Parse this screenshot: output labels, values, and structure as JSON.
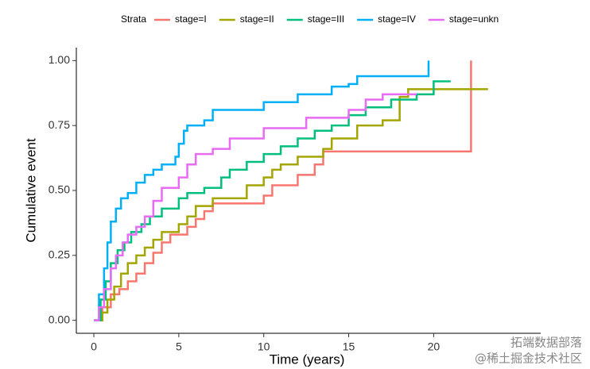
{
  "chart_data": {
    "type": "step",
    "x_label": "Time (years)",
    "y_label": "Cumulative event",
    "legend_title": "Strata",
    "legend_position": "top",
    "xlim": [
      -1.03,
      26.3
    ],
    "ylim": [
      -0.05,
      1.05
    ],
    "xticks": [
      0,
      5,
      10,
      15,
      20
    ],
    "yticks": [
      {
        "value": 0,
        "label": "0.00"
      },
      {
        "value": 0.25,
        "label": "0.25"
      },
      {
        "value": 0.5,
        "label": "0.50"
      },
      {
        "value": 0.75,
        "label": "0.75"
      },
      {
        "value": 1,
        "label": "1.00"
      }
    ],
    "grid": false,
    "series": [
      {
        "name": "stage=I",
        "color": "#F8766D",
        "x": [
          0,
          0.5,
          1,
          1.5,
          2,
          2.5,
          3,
          3.5,
          4,
          4.5,
          5.5,
          6,
          6.5,
          7,
          10,
          10.5,
          12,
          13,
          13.5,
          22.2,
          22.2
        ],
        "values": [
          0,
          0.05,
          0.1,
          0.12,
          0.15,
          0.18,
          0.22,
          0.26,
          0.3,
          0.33,
          0.36,
          0.39,
          0.42,
          0.45,
          0.48,
          0.52,
          0.56,
          0.6,
          0.65,
          0.65,
          1.0
        ]
      },
      {
        "name": "stage=II",
        "color": "#A3A500",
        "x": [
          0.3,
          0.5,
          0.8,
          1.2,
          1.6,
          2,
          2.5,
          3,
          3.5,
          4,
          5,
          5.5,
          6,
          7,
          9,
          10,
          10.5,
          11,
          12,
          13.5,
          14,
          15.5,
          17,
          18,
          18.5,
          23.2
        ],
        "values": [
          0,
          0.03,
          0.08,
          0.13,
          0.18,
          0.22,
          0.25,
          0.28,
          0.31,
          0.34,
          0.37,
          0.4,
          0.44,
          0.47,
          0.52,
          0.55,
          0.58,
          0.6,
          0.63,
          0.66,
          0.7,
          0.75,
          0.77,
          0.86,
          0.89,
          0.89
        ]
      },
      {
        "name": "stage=III",
        "color": "#00BF7D",
        "x": [
          0,
          0.4,
          0.7,
          1,
          1.4,
          1.8,
          2.2,
          2.8,
          3.3,
          4,
          5,
          5.5,
          6.5,
          7.5,
          8,
          9,
          10,
          11,
          12,
          13,
          14,
          15,
          16,
          17.5,
          19,
          20,
          21
        ],
        "values": [
          0,
          0.08,
          0.15,
          0.22,
          0.27,
          0.3,
          0.34,
          0.37,
          0.4,
          0.43,
          0.47,
          0.49,
          0.51,
          0.55,
          0.58,
          0.61,
          0.64,
          0.67,
          0.7,
          0.73,
          0.75,
          0.79,
          0.82,
          0.85,
          0.87,
          0.92,
          0.92
        ]
      },
      {
        "name": "stage=IV",
        "color": "#00B0F6",
        "x": [
          0,
          0.3,
          0.6,
          0.8,
          1,
          1.3,
          1.6,
          2,
          2.5,
          3,
          3.5,
          4,
          4.8,
          5,
          5.3,
          5.5,
          6.5,
          7,
          10,
          12,
          14,
          15,
          15.5,
          19.7,
          19.7
        ],
        "values": [
          0,
          0.1,
          0.2,
          0.3,
          0.38,
          0.43,
          0.47,
          0.49,
          0.53,
          0.56,
          0.58,
          0.6,
          0.63,
          0.68,
          0.73,
          0.75,
          0.77,
          0.81,
          0.84,
          0.87,
          0.9,
          0.91,
          0.94,
          0.94,
          1.0
        ]
      },
      {
        "name": "stage=unkn",
        "color": "#E76BF3",
        "x": [
          0,
          0.3,
          0.6,
          1,
          1.3,
          1.7,
          2,
          2.5,
          3,
          3.5,
          4,
          5,
          5.5,
          6,
          7,
          8,
          10,
          12.5,
          15,
          16,
          17,
          19
        ],
        "values": [
          0,
          0.05,
          0.12,
          0.2,
          0.25,
          0.3,
          0.33,
          0.36,
          0.4,
          0.46,
          0.51,
          0.55,
          0.6,
          0.64,
          0.66,
          0.7,
          0.74,
          0.78,
          0.81,
          0.85,
          0.87,
          0.87
        ]
      }
    ],
    "watermark": [
      "拓端数据部落",
      "@稀土掘金技术社区"
    ]
  }
}
